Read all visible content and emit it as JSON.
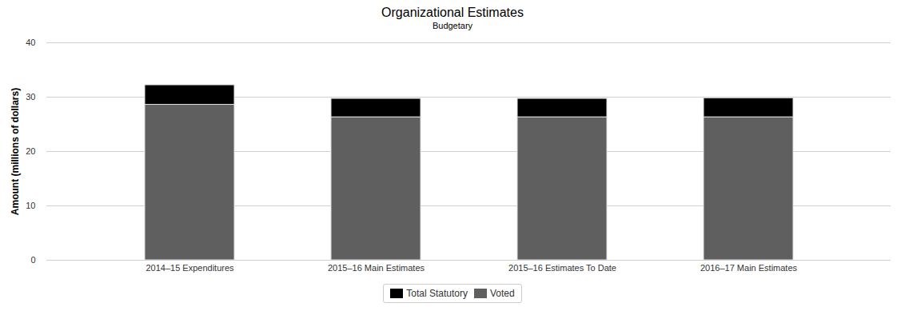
{
  "chart_data": {
    "type": "bar",
    "title": "Organizational Estimates",
    "subtitle": "Budgetary",
    "y_label": "Amount (millions of dollars)",
    "categories": [
      "2014–15 Expenditures",
      "2015–16 Main Estimates",
      "2015–16 Estimates To Date",
      "2016–17 Main Estimates"
    ],
    "series": [
      {
        "name": "Total Statutory",
        "color": "#000000",
        "values": [
          3.6,
          3.4,
          3.4,
          3.5
        ]
      },
      {
        "name": "Voted",
        "color": "#5f5f5f",
        "values": [
          28.6,
          26.3,
          26.3,
          26.3
        ]
      }
    ],
    "stacked": true,
    "ylim": [
      0,
      40
    ],
    "yticks": [
      0,
      10,
      20,
      30,
      40
    ],
    "grid": true,
    "legend": "bottom"
  }
}
